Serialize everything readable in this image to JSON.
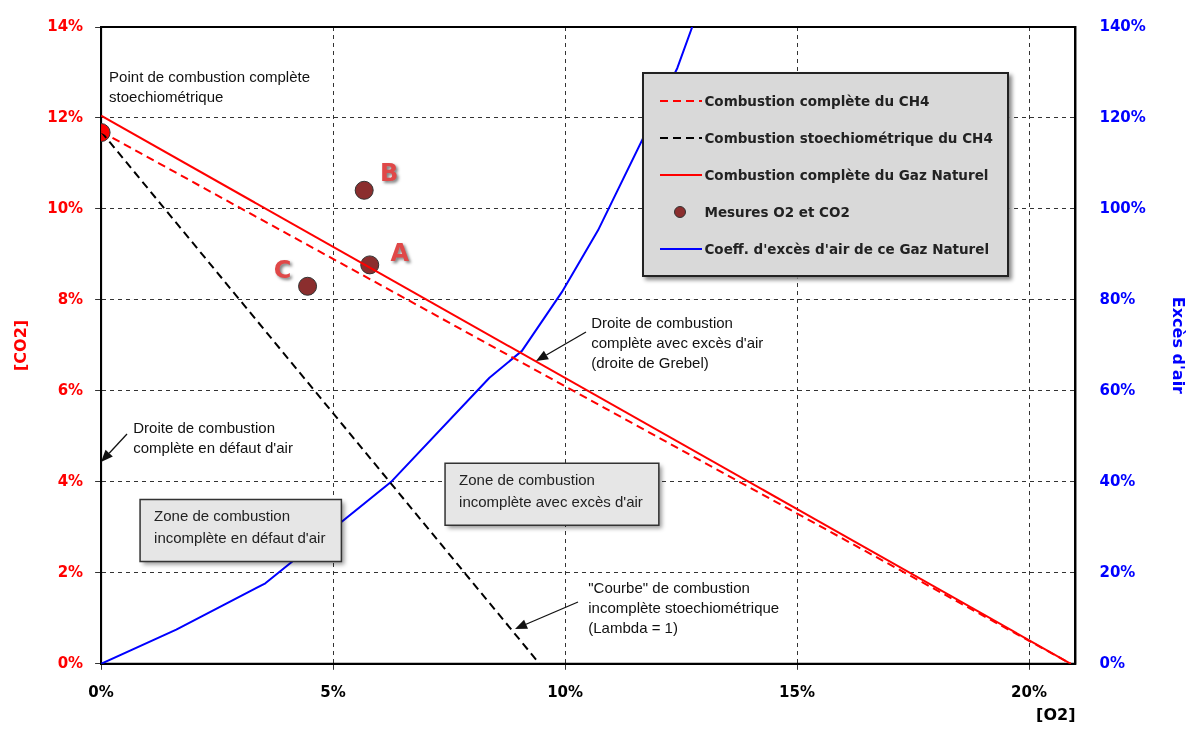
{
  "chart_data": {
    "type": "line",
    "xlabel": "[O2]",
    "ylabel": "[CO2]",
    "y2label": "Excès d'air",
    "xlim": [
      0,
      21
    ],
    "xticks": [
      {
        "value": 0,
        "label": "0%"
      },
      {
        "value": 5,
        "label": "5%"
      },
      {
        "value": 10,
        "label": "10%"
      },
      {
        "value": 15,
        "label": "15%"
      },
      {
        "value": 20,
        "label": "20%"
      }
    ],
    "ylim": [
      0,
      14
    ],
    "yticks": [
      {
        "value": 0,
        "label": "0%"
      },
      {
        "value": 2,
        "label": "2%"
      },
      {
        "value": 4,
        "label": "4%"
      },
      {
        "value": 6,
        "label": "6%"
      },
      {
        "value": 8,
        "label": "8%"
      },
      {
        "value": 10,
        "label": "10%"
      },
      {
        "value": 12,
        "label": "12%"
      },
      {
        "value": 14,
        "label": "14%"
      }
    ],
    "y2lim": [
      0,
      140
    ],
    "y2ticks": [
      {
        "value": 0,
        "label": "0%"
      },
      {
        "value": 20,
        "label": "20%"
      },
      {
        "value": 40,
        "label": "40%"
      },
      {
        "value": 60,
        "label": "60%"
      },
      {
        "value": 80,
        "label": "80%"
      },
      {
        "value": 100,
        "label": "100%"
      },
      {
        "value": 120,
        "label": "120%"
      },
      {
        "value": 140,
        "label": "140%"
      }
    ],
    "grid": true,
    "legend": "top right",
    "series": [
      {
        "name": "Combustion complète du CH4",
        "type": "line",
        "color": "#ff0000",
        "line_style": "dashed",
        "marker": "none",
        "x": [
          0,
          20.9
        ],
        "values": [
          11.7,
          0
        ]
      },
      {
        "name": "Combustion stoechiométrique du CH4",
        "type": "line",
        "color": "#000000",
        "line_style": "dashed",
        "marker": "none",
        "x": [
          0,
          9.45
        ],
        "values": [
          11.7,
          0
        ]
      },
      {
        "name": "Combustion complète du Gaz Naturel",
        "type": "line",
        "color": "#ff0000",
        "line_style": "solid",
        "marker": "none",
        "x": [
          0,
          20.9
        ],
        "values": [
          12.05,
          0
        ]
      },
      {
        "name": "Mesures O2 et CO2",
        "type": "scatter",
        "color": "#8b2e2e",
        "marker": "circle",
        "x": [
          5.79,
          5.67,
          4.45
        ],
        "values": [
          8.77,
          10.41,
          8.3
        ]
      },
      {
        "name": "Coeff. d'excès d'air de ce Gaz Naturel",
        "type": "line",
        "color": "#0000ff",
        "line_style": "solid",
        "marker": "none",
        "axis": "y2",
        "x": [
          0,
          1.62,
          3.54,
          6.24,
          8.37,
          9.07,
          9.93,
          10.71,
          12.42,
          12.74
        ],
        "values": [
          0,
          7.5,
          17.7,
          39.9,
          62.9,
          68.8,
          81.7,
          95.3,
          131,
          140
        ]
      },
      {
        "type": "scatter",
        "color": "#ff0000",
        "marker": "circle",
        "x": [
          0
        ],
        "values": [
          11.68
        ]
      }
    ],
    "annotations": [
      {
        "text": "Point de combustion complète\nstoechiométrique",
        "x": 0,
        "y": 11.68
      },
      {
        "text": "A",
        "x": 5.79,
        "y": 8.77
      },
      {
        "text": "B",
        "x": 5.67,
        "y": 10.41
      },
      {
        "text": "C",
        "x": 4.45,
        "y": 8.3
      },
      "Droite de combustion\ncomplète avec excès d'air\n(droite de Grebel)",
      "Droite de combustion\ncomplète en défaut d'air",
      "Zone de combustion\nincomplète en défaut d'air",
      "Zone de combustion\nincomplète avec excès d'air",
      "\"Courbe\" de combustion\nincomplète stoechiométrique\n(Lambda = 1)"
    ]
  }
}
